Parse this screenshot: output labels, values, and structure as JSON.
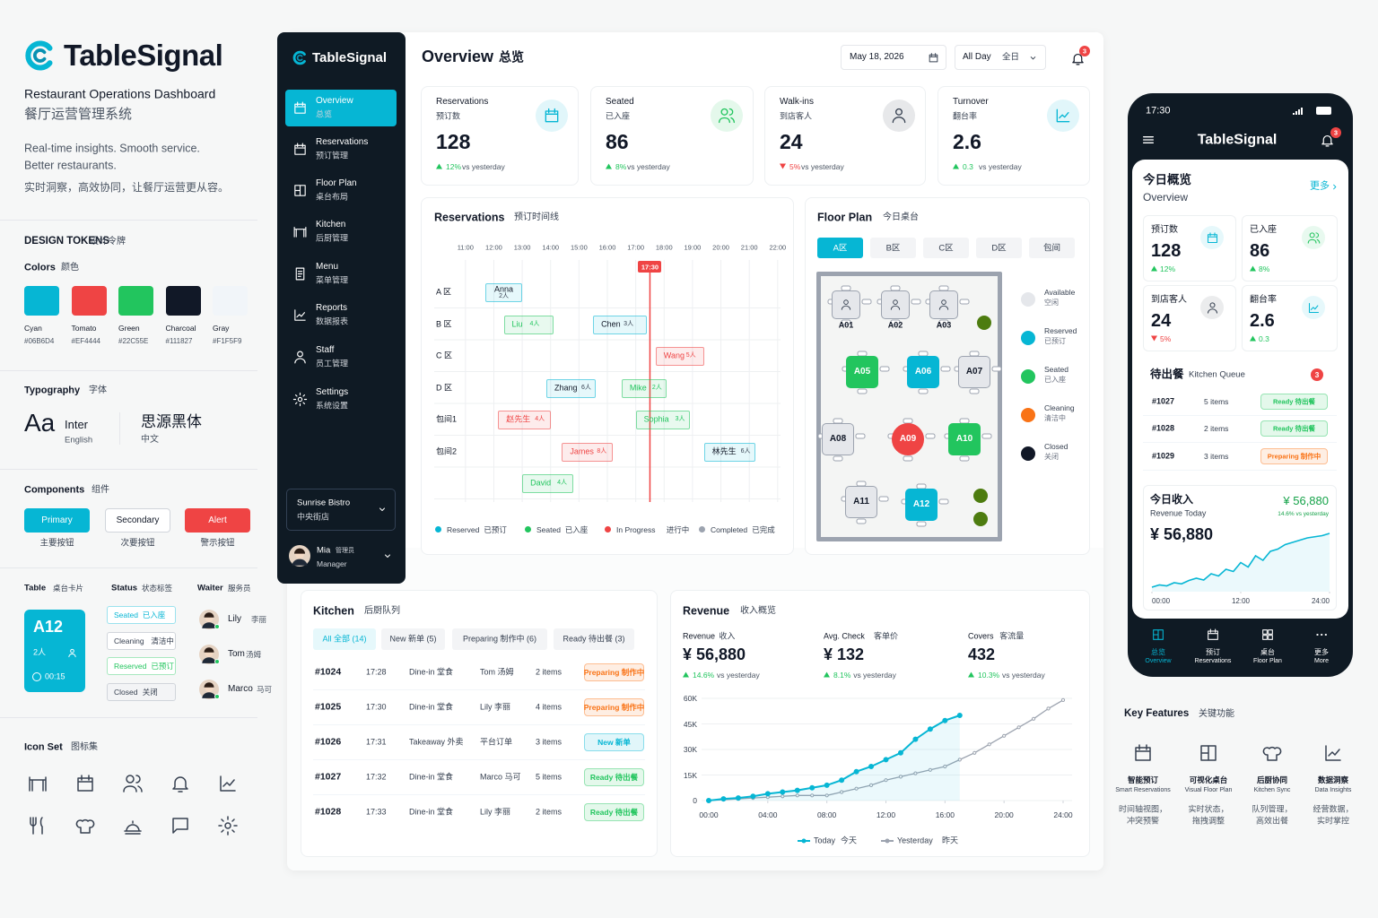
{
  "brand": {
    "name": "TableSignal",
    "subtitle": "Restaurant Operations Dashboard",
    "subtitle_cn": "餐厅运营管理系统",
    "tagline": "Real-time insights. Smooth service.",
    "tagline2": "Better restaurants.",
    "tagline_cn": "实时洞察，高效协同，让餐厅运营更从容。"
  },
  "design_tokens": {
    "title": "DESIGN TOKENS",
    "title_cn": "设计令牌",
    "colors": {
      "title": "Colors",
      "title_cn": "颜色",
      "items": [
        {
          "name": "Cyan",
          "hex": "#06B6D4"
        },
        {
          "name": "Tomato",
          "hex": "#EF4444"
        },
        {
          "name": "Green",
          "hex": "#22C55E"
        },
        {
          "name": "Charcoal",
          "hex": "#111827"
        },
        {
          "name": "Gray",
          "hex": "#F1F5F9"
        }
      ]
    },
    "typography": {
      "title": "Typography",
      "title_cn": "字体",
      "sample": "Aa",
      "latin": "Inter",
      "latin_note": "English",
      "cjk": "思源黑体",
      "cjk_note": "中文"
    },
    "components": {
      "title": "Components",
      "title_cn": "组件",
      "buttons": [
        {
          "label": "Primary",
          "note": "主要按钮"
        },
        {
          "label": "Secondary",
          "note": "次要按钮"
        },
        {
          "label": "Alert",
          "note": "警示按钮"
        }
      ]
    },
    "table_card": {
      "title": "Table",
      "title_cn": "桌台卡片",
      "id": "A12",
      "guests": "2人",
      "time": "00:15"
    },
    "status": {
      "title": "Status",
      "title_cn": "状态标签",
      "items": [
        {
          "label": "Seated",
          "cn": "已入座",
          "color": "#06B6D4"
        },
        {
          "label": "Cleaning",
          "cn": "清洁中",
          "color": "#374151"
        },
        {
          "label": "Reserved",
          "cn": "已预订",
          "color": "#22C55E"
        },
        {
          "label": "Closed",
          "cn": "关闭",
          "color": "#374151"
        }
      ]
    },
    "waiter": {
      "title": "Waiter",
      "title_cn": "服务员",
      "items": [
        {
          "name": "Lily",
          "cn": "李丽"
        },
        {
          "name": "Tom",
          "cn": "汤姆"
        },
        {
          "name": "Marco",
          "cn": "马可"
        }
      ]
    },
    "icon_set": {
      "title": "Icon Set",
      "title_cn": "图标集"
    }
  },
  "sidebar": {
    "brand": "TableSignal",
    "items": [
      {
        "en": "Overview",
        "cn": "总览"
      },
      {
        "en": "Reservations",
        "cn": "预订管理"
      },
      {
        "en": "Floor Plan",
        "cn": "桌台布局"
      },
      {
        "en": "Kitchen",
        "cn": "后厨管理"
      },
      {
        "en": "Menu",
        "cn": "菜单管理"
      },
      {
        "en": "Reports",
        "cn": "数据报表"
      },
      {
        "en": "Staff",
        "cn": "员工管理"
      },
      {
        "en": "Settings",
        "cn": "系统设置"
      }
    ],
    "restaurant": {
      "name": "Sunrise Bistro",
      "cn": "中央街店"
    },
    "user": {
      "name": "Mia",
      "role_cn": "管理员",
      "role": "Manager"
    }
  },
  "header": {
    "title": "Overview",
    "title_cn": "总览",
    "date": "May 18, 2026",
    "range": "All Day",
    "range_cn": "全日",
    "notifications": 3
  },
  "kpis": [
    {
      "title": "Reservations",
      "title_cn": "预订数",
      "value": 128,
      "change": "12%",
      "trend": "up",
      "note": "vs yesterday",
      "color": "#06B6D4"
    },
    {
      "title": "Seated",
      "title_cn": "已入座",
      "value": 86,
      "change": "8%",
      "trend": "up",
      "note": "vs yesterday",
      "color": "#22C55E"
    },
    {
      "title": "Walk-ins",
      "title_cn": "到店客人",
      "value": 24,
      "change": "5%",
      "trend": "down",
      "note": "vs yesterday",
      "color": "#374151"
    },
    {
      "title": "Turnover",
      "title_cn": "翻台率",
      "value": 2.6,
      "change": "0.3",
      "trend": "up",
      "note": "vs yesterday",
      "color": "#06B6D4"
    }
  ],
  "timeline": {
    "title": "Reservations",
    "title_cn": "预订时间线",
    "xlim": [
      9.9,
      22.1
    ],
    "xticks": [
      {
        "value": 11,
        "label": "11:00"
      },
      {
        "value": 12,
        "label": "12:00"
      },
      {
        "value": 13,
        "label": "13:00"
      },
      {
        "value": 14,
        "label": "14:00"
      },
      {
        "value": 15,
        "label": "15:00"
      },
      {
        "value": 16,
        "label": "16:00"
      },
      {
        "value": 17,
        "label": "17:00"
      },
      {
        "value": 18,
        "label": "18:00"
      },
      {
        "value": 19,
        "label": "19:00"
      },
      {
        "value": 20,
        "label": "20:00"
      },
      {
        "value": 21,
        "label": "21:00"
      },
      {
        "value": 22,
        "label": "22:00"
      }
    ],
    "now": {
      "value": 17.5,
      "label": "17:30"
    },
    "rows": [
      "A 区",
      "B 区",
      "C 区",
      "D 区",
      "包间1",
      "包间2",
      null
    ],
    "bookings": [
      {
        "name": "Anna",
        "size": "2人",
        "row": 0,
        "start": 11.7,
        "end": 13.0,
        "status": "Reserved"
      },
      {
        "name": "Liu",
        "size": "4人",
        "row": 1,
        "start": 12.35,
        "end": 14.1,
        "status": "Seated"
      },
      {
        "name": "Chen",
        "size": "3人",
        "row": 1,
        "start": 15.5,
        "end": 17.4,
        "status": "Reserved"
      },
      {
        "name": "Wang",
        "size": "5人",
        "row": 2,
        "start": 17.7,
        "end": 19.4,
        "status": "In Progress"
      },
      {
        "name": "Zhang",
        "size": "6人",
        "row": 3,
        "start": 13.85,
        "end": 15.6,
        "status": "Reserved"
      },
      {
        "name": "Mike",
        "size": "2人",
        "row": 3,
        "start": 16.5,
        "end": 18.1,
        "status": "Seated"
      },
      {
        "name": "赵先生",
        "size": "4人",
        "row": 4,
        "start": 12.15,
        "end": 14.0,
        "status": "In Progress"
      },
      {
        "name": "Sophia",
        "size": "3人",
        "row": 4,
        "start": 17.0,
        "end": 18.9,
        "status": "Seated"
      },
      {
        "name": "James",
        "size": "8人",
        "row": 5,
        "start": 14.4,
        "end": 16.2,
        "status": "In Progress"
      },
      {
        "name": "林先生",
        "size": "6人",
        "row": 5,
        "start": 19.4,
        "end": 21.2,
        "status": "Reserved"
      },
      {
        "name": "David",
        "size": "4人",
        "row": 6,
        "start": 13.0,
        "end": 14.8,
        "status": "Seated"
      }
    ],
    "legend": [
      {
        "en": "Reserved",
        "cn": "已预订",
        "color": "#06B6D4"
      },
      {
        "en": "Seated",
        "cn": "已入座",
        "color": "#22C55E"
      },
      {
        "en": "In Progress",
        "cn": "进行中",
        "color": "#EF4444"
      },
      {
        "en": "Completed",
        "cn": "已完成",
        "color": "#9CA3AF"
      }
    ]
  },
  "floor_plan": {
    "title": "Floor Plan",
    "title_cn": "今日桌台",
    "tabs": [
      "A区",
      "B区",
      "C区",
      "D区",
      "包间"
    ],
    "active_tab": 0,
    "tables": [
      {
        "id": "A01",
        "color": "#E5E7EB"
      },
      {
        "id": "A02",
        "color": "#E5E7EB"
      },
      {
        "id": "A03",
        "color": "#E5E7EB"
      },
      {
        "id": "A05",
        "color": "#22C55E"
      },
      {
        "id": "A06",
        "color": "#06B6D4"
      },
      {
        "id": "A07",
        "color": "#E5E7EB"
      },
      {
        "id": "A08",
        "color": "#E5E7EB"
      },
      {
        "id": "A09",
        "color": "#EF4444"
      },
      {
        "id": "A10",
        "color": "#22C55E"
      },
      {
        "id": "A11",
        "color": "#E5E7EB"
      },
      {
        "id": "A12",
        "color": "#06B6D4"
      }
    ],
    "legend": [
      {
        "en": "Available",
        "cn": "空闲",
        "color": "#E5E7EB"
      },
      {
        "en": "Reserved",
        "cn": "已预订",
        "color": "#06B6D4"
      },
      {
        "en": "Seated",
        "cn": "已入座",
        "color": "#22C55E"
      },
      {
        "en": "Cleaning",
        "cn": "清洁中",
        "color": "#F97316"
      },
      {
        "en": "Closed",
        "cn": "关闭",
        "color": "#111827"
      }
    ]
  },
  "kitchen": {
    "title": "Kitchen",
    "title_cn": "后厨队列",
    "tabs": [
      "All 全部 (14)",
      "New 新单 (5)",
      "Preparing 制作中 (6)",
      "Ready 待出餐 (3)"
    ],
    "active_tab": 0,
    "orders": [
      {
        "id": "#1024",
        "time": "17:28",
        "type": "Dine-in 堂食",
        "waiter": "Tom 汤姆",
        "items": "2 items",
        "status": "Preparing 制作中",
        "color": "#F97316"
      },
      {
        "id": "#1025",
        "time": "17:30",
        "type": "Dine-in 堂食",
        "waiter": "Lily 李丽",
        "items": "4 items",
        "status": "Preparing 制作中",
        "color": "#F97316"
      },
      {
        "id": "#1026",
        "time": "17:31",
        "type": "Takeaway 外卖",
        "waiter": "平台订单",
        "items": "3 items",
        "status": "New 新单",
        "color": "#06B6D4"
      },
      {
        "id": "#1027",
        "time": "17:32",
        "type": "Dine-in 堂食",
        "waiter": "Marco 马可",
        "items": "5 items",
        "status": "Ready 待出餐",
        "color": "#22C55E"
      },
      {
        "id": "#1028",
        "time": "17:33",
        "type": "Dine-in 堂食",
        "waiter": "Lily 李丽",
        "items": "2 items",
        "status": "Ready 待出餐",
        "color": "#22C55E"
      }
    ]
  },
  "revenue": {
    "title": "Revenue",
    "title_cn": "收入概览",
    "stats": [
      {
        "label": "Revenue",
        "label_cn": "收入",
        "value": "¥ 56,880",
        "change": "14.6%",
        "note": "vs yesterday"
      },
      {
        "label": "Avg. Check",
        "label_cn": "客单价",
        "value": "¥ 132",
        "change": "8.1%",
        "note": "vs yesterday"
      },
      {
        "label": "Covers",
        "label_cn": "客流量",
        "value": "432",
        "change": "10.3%",
        "note": "vs yesterday"
      }
    ],
    "chart": {
      "type": "line",
      "x": [
        0,
        1,
        2,
        3,
        4,
        5,
        6,
        7,
        8,
        9,
        10,
        11,
        12,
        13,
        14,
        15,
        16,
        17,
        18,
        19,
        20,
        21,
        22,
        23,
        24
      ],
      "xlim": [
        0,
        24
      ],
      "xticks": [
        {
          "value": 0,
          "label": "00:00"
        },
        {
          "value": 4,
          "label": "04:00"
        },
        {
          "value": 8,
          "label": "08:00"
        },
        {
          "value": 12,
          "label": "12:00"
        },
        {
          "value": 16,
          "label": "16:00"
        },
        {
          "value": 20,
          "label": "20:00"
        },
        {
          "value": 24,
          "label": "24:00"
        }
      ],
      "ylim": [
        0,
        60000
      ],
      "yticks": [
        0,
        {
          "value": 15000,
          "label": "15K"
        },
        {
          "value": 30000,
          "label": "30K"
        },
        {
          "value": 45000,
          "label": "45K"
        },
        {
          "value": 60000,
          "label": "60K"
        }
      ],
      "series": [
        {
          "name": "Today",
          "name_cn": "今天",
          "color": "#06B6D4",
          "values": [
            0,
            1000,
            1500,
            2500,
            4000,
            5000,
            6000,
            7500,
            9000,
            12000,
            17000,
            20000,
            24000,
            28000,
            36000,
            42000,
            47000,
            50000,
            null,
            null,
            null,
            null,
            null,
            null,
            null
          ]
        },
        {
          "name": "Yesterday",
          "name_cn": "昨天",
          "color": "#9CA3AF",
          "values": [
            0,
            500,
            1000,
            1500,
            2000,
            2500,
            3000,
            3000,
            3000,
            5000,
            7000,
            9000,
            12000,
            14000,
            16000,
            18000,
            20000,
            24000,
            28000,
            33000,
            38000,
            43000,
            48000,
            54000,
            59000
          ]
        }
      ]
    }
  },
  "phone": {
    "time": "17:30",
    "brand": "TableSignal",
    "notifications": 3,
    "overview": {
      "title": "今日概览",
      "subtitle": "Overview",
      "more": "更多",
      "cards": [
        {
          "title": "预订数",
          "value": 128,
          "change": "12%",
          "trend": "up"
        },
        {
          "title": "已入座",
          "value": 86,
          "change": "8%",
          "trend": "up"
        },
        {
          "title": "到店客人",
          "value": 24,
          "change": "5%",
          "trend": "down"
        },
        {
          "title": "翻台率",
          "value": 2.6,
          "change": "0.3",
          "trend": "up"
        }
      ]
    },
    "queue": {
      "title": "待出餐",
      "subtitle": "Kitchen Queue",
      "count": 3,
      "orders": [
        {
          "id": "#1027",
          "items": "5 items",
          "status": "Ready 待出餐",
          "color": "#22C55E"
        },
        {
          "id": "#1028",
          "items": "2 items",
          "status": "Ready 待出餐",
          "color": "#22C55E"
        },
        {
          "id": "#1029",
          "items": "3 items",
          "status": "Preparing 制作中",
          "color": "#F97316"
        }
      ]
    },
    "revenue": {
      "title": "今日收入",
      "subtitle": "Revenue Today",
      "badge": "¥ 56,880",
      "change": "14.6% vs yesterday",
      "value": "¥ 56,880",
      "chart": {
        "type": "line",
        "x": [
          0,
          1,
          2,
          3,
          4,
          5,
          6,
          7,
          8,
          9,
          10,
          11,
          12,
          13,
          14,
          15,
          16,
          17,
          18,
          19,
          20,
          21,
          22,
          23,
          24
        ],
        "xlim": [
          0,
          24
        ],
        "xticks": [
          {
            "value": 0,
            "label": "00:00"
          },
          {
            "value": 12,
            "label": "12:00"
          },
          {
            "value": 24,
            "label": "24:00"
          }
        ],
        "ylim": [
          0,
          28
        ],
        "color": "#06B6D4",
        "values": [
          2,
          3,
          2.6,
          4,
          3.5,
          5,
          6,
          5.2,
          8,
          7,
          10,
          9,
          13,
          11,
          16,
          14,
          18,
          19,
          21,
          22,
          23,
          24,
          24.5,
          25,
          26
        ]
      }
    },
    "nav": [
      {
        "cn": "总览",
        "en": "Overview"
      },
      {
        "cn": "预订",
        "en": "Reservations"
      },
      {
        "cn": "桌台",
        "en": "Floor Plan"
      },
      {
        "cn": "更多",
        "en": "More"
      }
    ]
  },
  "features": {
    "title": "Key Features",
    "title_cn": "关键功能",
    "items": [
      {
        "cn": "智能预订",
        "en": "Smart Reservations",
        "desc": [
          "时间轴视图，",
          "冲突预警"
        ]
      },
      {
        "cn": "可视化桌台",
        "en": "Visual Floor Plan",
        "desc": [
          "实时状态，",
          "拖拽调整"
        ]
      },
      {
        "cn": "后厨协同",
        "en": "Kitchen Sync",
        "desc": [
          "队列管理，",
          "高效出餐"
        ]
      },
      {
        "cn": "数据洞察",
        "en": "Data Insights",
        "desc": [
          "经营数据，",
          "实时掌控"
        ]
      }
    ]
  }
}
